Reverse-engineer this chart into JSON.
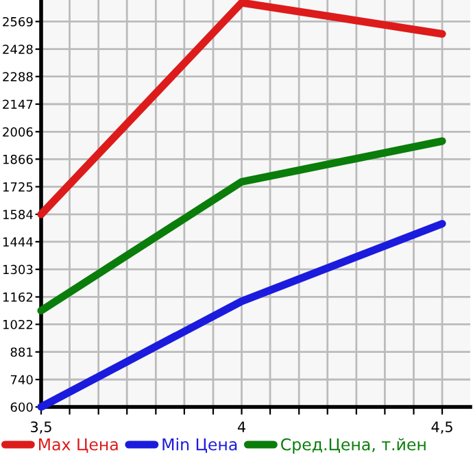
{
  "chart_data": {
    "type": "line",
    "x": [
      3.5,
      4,
      4.5
    ],
    "series": [
      {
        "name": "Max Цена",
        "color": "#dd1b1b",
        "values": [
          1584,
          2665,
          2506
        ]
      },
      {
        "name": "Min Цена",
        "color": "#1b1bdd",
        "values": [
          600,
          1140,
          1536
        ]
      },
      {
        "name": "Сред.Цена, т.йен",
        "color": "#0a7d0a",
        "values": [
          1092,
          1750,
          1958
        ]
      }
    ],
    "xlim": [
      3.5,
      4.57
    ],
    "ylim": [
      600,
      2679
    ],
    "xticks": [
      {
        "value": 3.5,
        "label": "3,5"
      },
      {
        "value": 3.571,
        "label": null
      },
      {
        "value": 3.643,
        "label": null
      },
      {
        "value": 3.714,
        "label": null
      },
      {
        "value": 3.786,
        "label": null
      },
      {
        "value": 3.857,
        "label": null
      },
      {
        "value": 3.929,
        "label": null
      },
      {
        "value": 4,
        "label": "4"
      },
      {
        "value": 4.071,
        "label": null
      },
      {
        "value": 4.143,
        "label": null
      },
      {
        "value": 4.214,
        "label": null
      },
      {
        "value": 4.286,
        "label": null
      },
      {
        "value": 4.357,
        "label": null
      },
      {
        "value": 4.429,
        "label": null
      },
      {
        "value": 4.5,
        "label": "4,5"
      }
    ],
    "yticks": [
      600,
      740,
      881,
      1022,
      1162,
      1303,
      1444,
      1584,
      1725,
      1866,
      2006,
      2147,
      2288,
      2428,
      2569
    ],
    "grid": true,
    "legend": "bottom",
    "marker": "none",
    "line_style": "solid"
  }
}
